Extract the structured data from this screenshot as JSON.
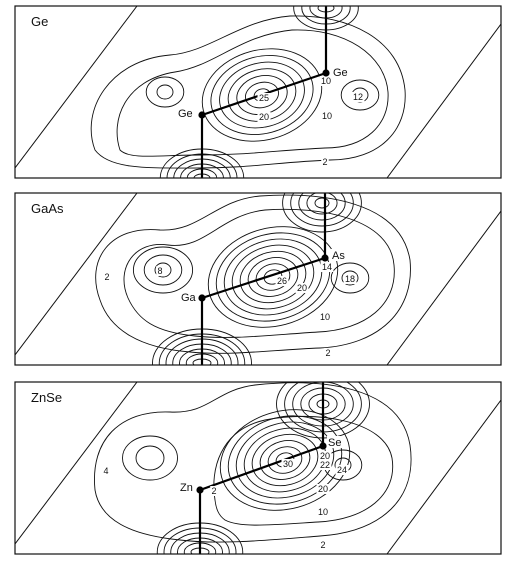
{
  "panels": [
    {
      "title": "Ge",
      "atoms": [
        "Ge",
        "Ge"
      ],
      "contour_labels": [
        "10",
        "25",
        "20",
        "12",
        "10",
        "2"
      ]
    },
    {
      "title": "GaAs",
      "atoms": [
        "Ga",
        "As"
      ],
      "contour_labels": [
        "2",
        "8",
        "14",
        "26",
        "20",
        "18",
        "10",
        "2"
      ]
    },
    {
      "title": "ZnSe",
      "atoms": [
        "Zn",
        "Se"
      ],
      "contour_labels": [
        "4",
        "2",
        "20",
        "30",
        "22",
        "24",
        "20",
        "10",
        "2"
      ]
    }
  ]
}
